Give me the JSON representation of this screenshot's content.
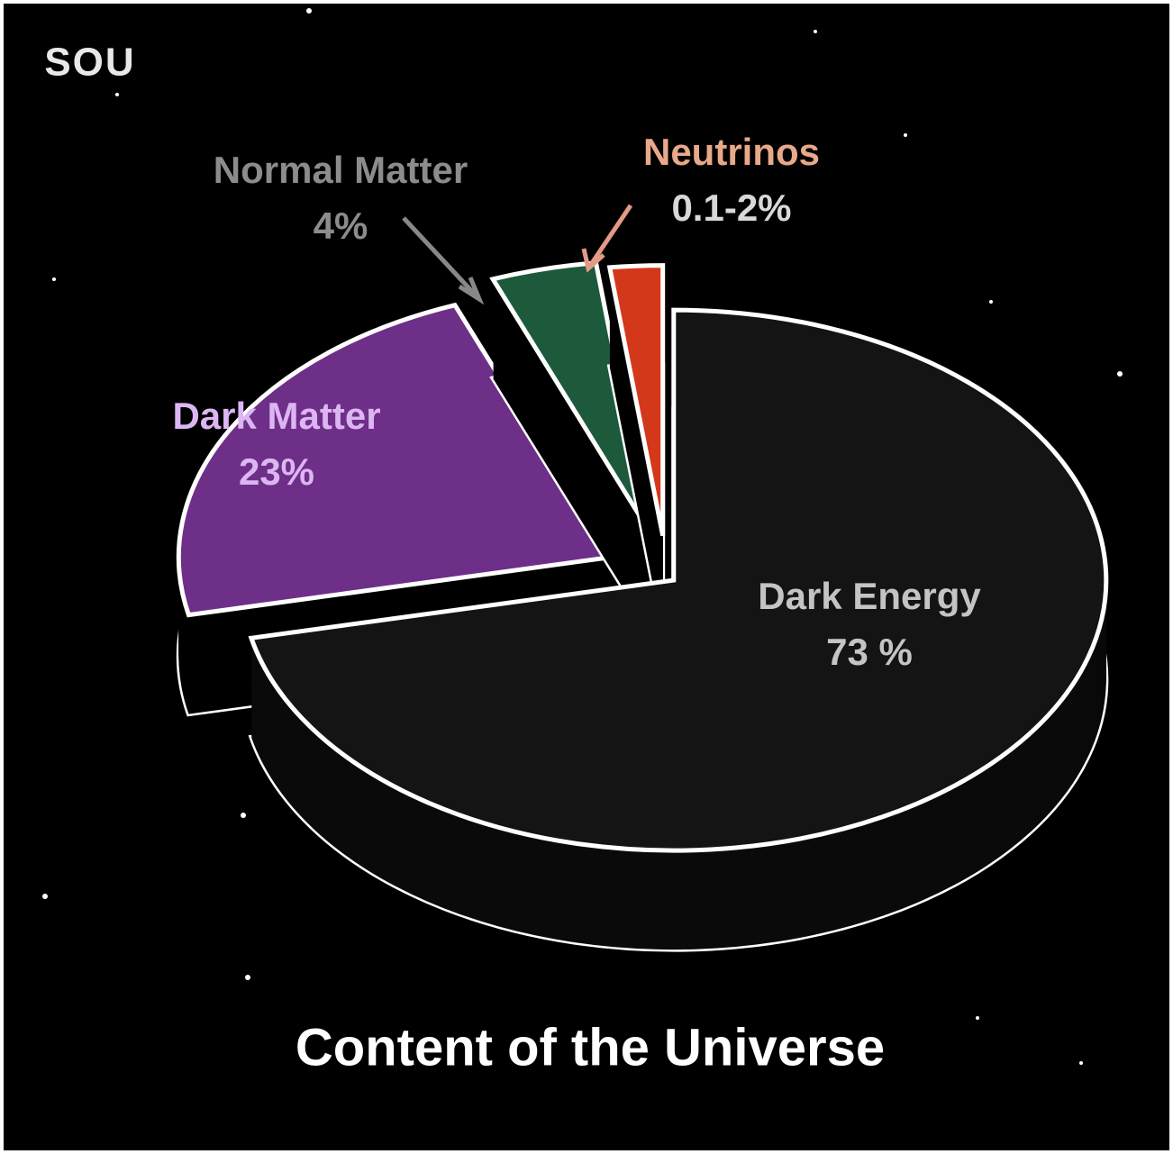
{
  "logo": "SOU",
  "chart_data": {
    "type": "pie",
    "title": "Content of the Universe",
    "categories": [
      "Dark Energy",
      "Dark Matter",
      "Normal Matter",
      "Neutrinos"
    ],
    "values": [
      73,
      23,
      4,
      2
    ],
    "value_labels": [
      "73 %",
      "23%",
      "4%",
      "0.1-2%"
    ],
    "colors": [
      "#141414",
      "#6e2f88",
      "#1d5a3c",
      "#d4381a"
    ]
  }
}
